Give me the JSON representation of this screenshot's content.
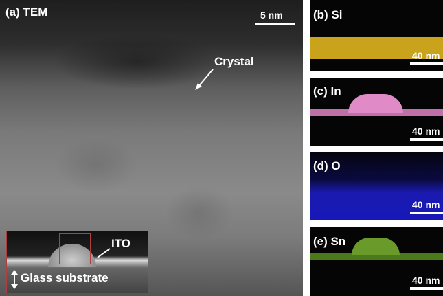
{
  "panel_a": {
    "label": "(a) TEM",
    "scale": "5 nm",
    "annotation": "Crystal",
    "inset": {
      "label": "ITO",
      "substrate": "Glass substrate"
    }
  },
  "maps": [
    {
      "label": "(b) Si",
      "scale": "40 nm"
    },
    {
      "label": "(c) In",
      "scale": "40 nm"
    },
    {
      "label": "(d) O",
      "scale": "40 nm"
    },
    {
      "label": "(e) Sn",
      "scale": "40 nm"
    }
  ]
}
